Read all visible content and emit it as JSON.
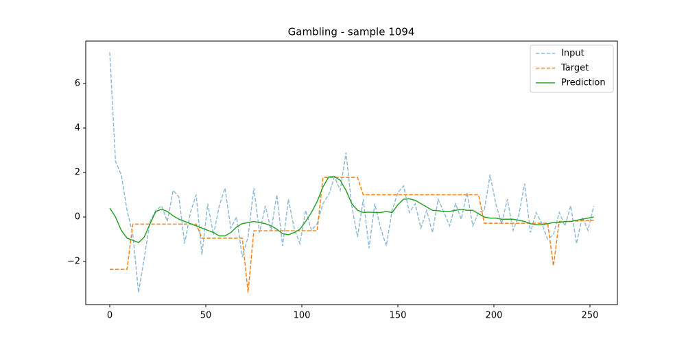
{
  "chart_data": {
    "type": "line",
    "title": "Gambling - sample 1094",
    "x": [
      0,
      3,
      6,
      9,
      12,
      15,
      18,
      21,
      24,
      27,
      30,
      33,
      36,
      39,
      42,
      45,
      48,
      51,
      54,
      57,
      60,
      63,
      66,
      69,
      72,
      75,
      78,
      81,
      84,
      87,
      90,
      93,
      96,
      99,
      102,
      105,
      108,
      111,
      114,
      117,
      120,
      123,
      126,
      129,
      132,
      135,
      138,
      141,
      144,
      147,
      150,
      153,
      156,
      159,
      162,
      165,
      168,
      171,
      174,
      177,
      180,
      183,
      186,
      189,
      192,
      195,
      198,
      201,
      204,
      207,
      210,
      213,
      216,
      219,
      222,
      225,
      228,
      231,
      234,
      237,
      240,
      243,
      246,
      249,
      252
    ],
    "series": [
      {
        "name": "Input",
        "color": "#1f77b4",
        "linestyle": "dashed",
        "opacity": 0.5,
        "values": [
          7.4,
          2.5,
          1.9,
          0.3,
          -0.8,
          -3.4,
          -1.8,
          -0.2,
          0.3,
          0.5,
          -0.2,
          1.2,
          0.9,
          -1.2,
          0.2,
          1.0,
          -1.7,
          0.6,
          -0.8,
          0.5,
          1.3,
          -0.5,
          0.0,
          -1.8,
          -0.9,
          1.3,
          -0.7,
          0.5,
          -0.6,
          1.0,
          -1.3,
          0.8,
          -0.5,
          -1.2,
          0.3,
          -0.6,
          -0.3,
          0.6,
          1.0,
          1.8,
          1.2,
          2.9,
          0.5,
          -0.9,
          0.8,
          -1.4,
          0.6,
          -0.5,
          -1.3,
          0.3,
          1.1,
          1.4,
          0.2,
          0.6,
          -0.5,
          0.3,
          -0.7,
          0.8,
          0.2,
          -0.4,
          0.6,
          -0.1,
          1.1,
          -0.4,
          0.2,
          0.3,
          1.9,
          0.6,
          -0.3,
          0.8,
          -0.6,
          0.1,
          1.5,
          -0.7,
          0.2,
          -0.3,
          -1.0,
          -0.8,
          0.2,
          -0.4,
          0.5,
          -1.2,
          0.0,
          -0.6,
          0.5
        ]
      },
      {
        "name": "Target",
        "color": "#ff7f0e",
        "linestyle": "dashed",
        "opacity": 1,
        "values": [
          -2.35,
          -2.35,
          -2.35,
          -2.35,
          -0.32,
          -0.32,
          -0.32,
          -0.32,
          -0.32,
          -0.32,
          -0.32,
          -0.32,
          -0.32,
          -0.32,
          -0.32,
          -0.32,
          -0.95,
          -0.95,
          -0.95,
          -0.95,
          -0.95,
          -0.95,
          -0.95,
          -0.95,
          -3.4,
          -0.62,
          -0.62,
          -0.62,
          -0.62,
          -0.62,
          -0.62,
          -0.62,
          -0.62,
          -0.62,
          -0.62,
          -0.62,
          -0.62,
          1.78,
          1.78,
          1.78,
          1.78,
          1.78,
          1.78,
          1.78,
          1.0,
          1.0,
          1.0,
          1.0,
          1.0,
          1.0,
          1.0,
          1.0,
          1.0,
          1.0,
          1.0,
          1.0,
          1.0,
          1.0,
          1.0,
          1.0,
          1.0,
          1.0,
          1.0,
          1.0,
          1.0,
          -0.28,
          -0.28,
          -0.28,
          -0.28,
          -0.28,
          -0.28,
          -0.28,
          -0.28,
          -0.28,
          -0.28,
          -0.28,
          -0.28,
          -2.2,
          -0.2,
          -0.2,
          -0.2,
          -0.18,
          -0.17,
          -0.16,
          -0.15
        ]
      },
      {
        "name": "Prediction",
        "color": "#2ca02c",
        "linestyle": "solid",
        "opacity": 1,
        "values": [
          0.4,
          0.0,
          -0.6,
          -0.95,
          -1.05,
          -1.15,
          -0.9,
          -0.3,
          0.25,
          0.35,
          0.25,
          0.05,
          -0.1,
          -0.2,
          -0.3,
          -0.4,
          -0.5,
          -0.6,
          -0.7,
          -0.85,
          -0.85,
          -0.7,
          -0.45,
          -0.3,
          -0.25,
          -0.2,
          -0.25,
          -0.3,
          -0.4,
          -0.55,
          -0.75,
          -0.8,
          -0.7,
          -0.55,
          -0.2,
          0.2,
          0.7,
          1.35,
          1.8,
          1.82,
          1.65,
          1.2,
          0.6,
          0.3,
          0.2,
          0.22,
          0.2,
          0.2,
          0.25,
          0.2,
          0.55,
          0.8,
          0.82,
          0.75,
          0.6,
          0.45,
          0.3,
          0.28,
          0.25,
          0.25,
          0.3,
          0.35,
          0.3,
          0.3,
          0.15,
          0.0,
          -0.05,
          -0.05,
          -0.1,
          -0.1,
          -0.1,
          -0.15,
          -0.2,
          -0.3,
          -0.35,
          -0.35,
          -0.3,
          -0.25,
          -0.25,
          -0.2,
          -0.2,
          -0.15,
          -0.1,
          -0.05,
          0.0
        ]
      }
    ],
    "xlim": [
      -12.5,
      264.3
    ],
    "ylim": [
      -3.94,
      7.91
    ],
    "xticks": [
      0,
      50,
      100,
      150,
      200,
      250
    ],
    "yticks": [
      {
        "value": -2,
        "label": "−2"
      },
      0,
      2,
      4,
      6
    ],
    "legend": "upper right"
  }
}
